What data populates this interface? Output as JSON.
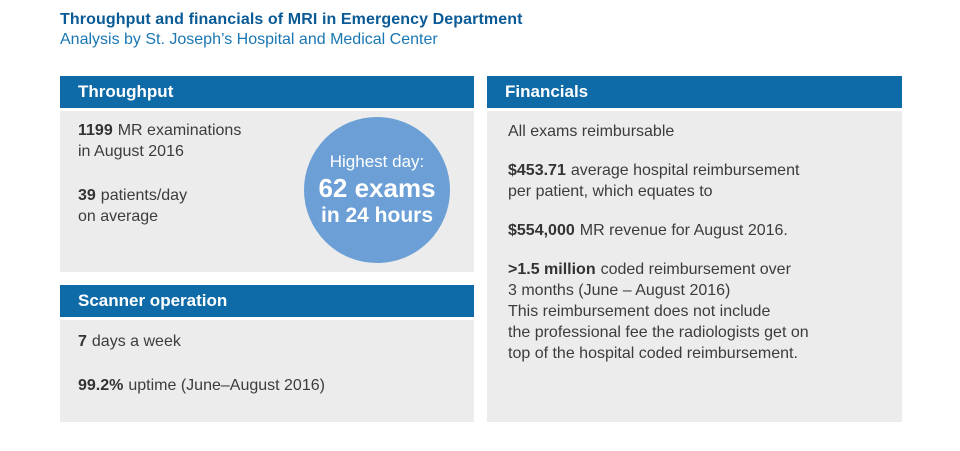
{
  "page": {
    "title": "Throughput and financials of MRI in Emergency Department",
    "subtitle": "Analysis by St. Joseph’s Hospital and Medical Center"
  },
  "colors": {
    "header_bar_blue": "#0f6ba7",
    "panel_body_gray": "#ececec",
    "title_blue": "#0a5a96",
    "subtitle_blue": "#1a77b2",
    "body_text_gray": "#3c3c3c",
    "badge_circle_blue": "#6b9fd6",
    "badge_text": "#ffffff"
  },
  "throughput": {
    "header": "Throughput",
    "stat_exams": {
      "value": "1199",
      "line1": "MR examinations",
      "line2": "in August 2016"
    },
    "stat_patients": {
      "value": "39",
      "line1": "patients/day",
      "line2": "on average"
    },
    "badge": {
      "line1": "Highest day:",
      "line2": "62 exams",
      "line3": "in 24 hours"
    }
  },
  "scanner": {
    "header": "Scanner operation",
    "stat_days": {
      "value": "7",
      "line1": "days a week"
    },
    "stat_uptime": {
      "value": "99.2%",
      "line1": "uptime (June–August 2016)"
    }
  },
  "financials": {
    "header": "Financials",
    "p1": {
      "line1": "All exams reimbursable"
    },
    "p2": {
      "value": "$453.71",
      "line1": "average hospital reimbursement",
      "line2": "per patient, which equates to"
    },
    "p3": {
      "value": "$554,000",
      "line1": "MR revenue for August 2016."
    },
    "p4": {
      "value": ">1.5 million",
      "line1": "coded reimbursement over",
      "line2": "3 months (June – August 2016)",
      "line3": "This reimbursement does not include",
      "line4": "the professional fee the radiologists get on",
      "line5": "top of the hospital coded reimbursement."
    }
  }
}
